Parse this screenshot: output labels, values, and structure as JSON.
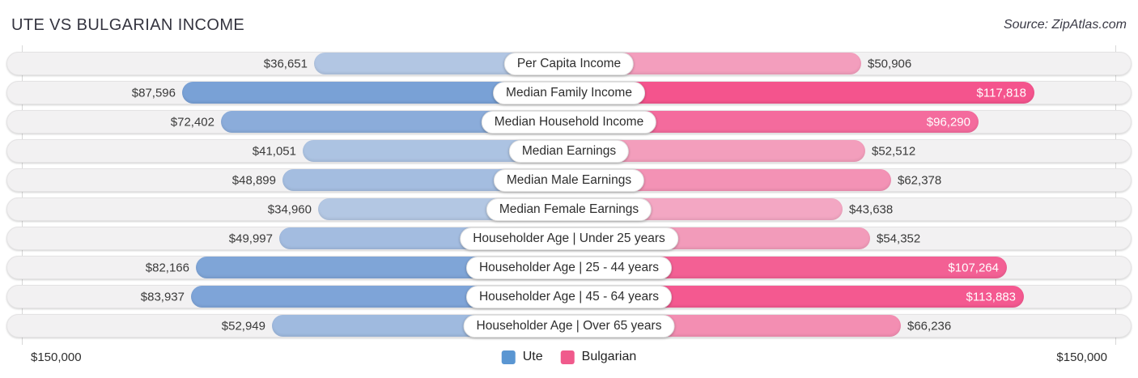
{
  "title": "UTE VS BULGARIAN INCOME",
  "source": "Source: ZipAtlas.com",
  "axis": {
    "left_label": "$150,000",
    "right_label": "$150,000"
  },
  "legend": {
    "items": [
      {
        "label": "Ute",
        "color": "#5a96d2"
      },
      {
        "label": "Bulgarian",
        "color": "#f05a8c"
      }
    ]
  },
  "chart_data": {
    "type": "bar",
    "variant": "diverging-horizontal",
    "title": "UTE VS BULGARIAN INCOME",
    "xlim_each_side": [
      0,
      150000
    ],
    "axis_tick_labels": [
      "$150,000",
      "$150,000"
    ],
    "grid": "edge-gridlines-only",
    "legend_position": "bottom-center",
    "categories": [
      "Per Capita Income",
      "Median Family Income",
      "Median Household Income",
      "Median Earnings",
      "Median Male Earnings",
      "Median Female Earnings",
      "Householder Age | Under 25 years",
      "Householder Age | 25 - 44 years",
      "Householder Age | 45 - 64 years",
      "Householder Age | Over 65 years"
    ],
    "series": [
      {
        "name": "Ute",
        "side": "left",
        "base_color": "#2a6cc4",
        "values": [
          36651,
          87596,
          72402,
          41051,
          48899,
          34960,
          49997,
          82166,
          83937,
          52949
        ],
        "value_labels": [
          "$36,651",
          "$87,596",
          "$72,402",
          "$41,051",
          "$48,899",
          "$34,960",
          "$49,997",
          "$82,166",
          "$83,937",
          "$52,949"
        ],
        "label_inside": [
          false,
          false,
          false,
          false,
          false,
          false,
          false,
          false,
          false,
          false
        ]
      },
      {
        "name": "Bulgarian",
        "side": "right",
        "base_color": "#f4246e",
        "values": [
          50906,
          117818,
          96290,
          52512,
          62378,
          43638,
          54352,
          107264,
          113883,
          66236
        ],
        "value_labels": [
          "$50,906",
          "$117,818",
          "$96,290",
          "$52,512",
          "$62,378",
          "$43,638",
          "$54,352",
          "$107,264",
          "$113,883",
          "$66,236"
        ],
        "label_inside": [
          false,
          true,
          true,
          false,
          false,
          false,
          false,
          true,
          true,
          false
        ]
      }
    ]
  }
}
